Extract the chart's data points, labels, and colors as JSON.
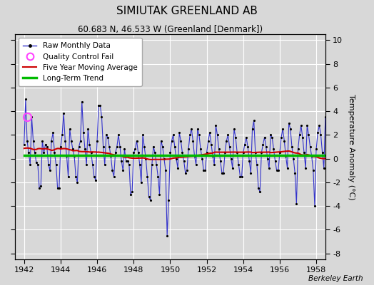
{
  "title": "SIMIUTAK GREENLAND AB",
  "subtitle": "60.683 N, 46.533 W (Greenland [Denmark])",
  "ylabel": "Temperature Anomaly (°C)",
  "xlabel_years": [
    1942,
    1944,
    1946,
    1948,
    1950,
    1952,
    1954,
    1956,
    1958
  ],
  "ylim": [
    -8.5,
    10.5
  ],
  "yticks": [
    -8,
    -6,
    -4,
    -2,
    0,
    2,
    4,
    6,
    8,
    10
  ],
  "bg_color": "#d8d8d8",
  "grid_color": "#ffffff",
  "raw_line_color": "#3333cc",
  "ma_color": "#cc0000",
  "trend_color": "#00bb00",
  "qc_color": "#ff44ff",
  "watermark": "Berkeley Earth",
  "title_fontsize": 11,
  "subtitle_fontsize": 8.5
}
